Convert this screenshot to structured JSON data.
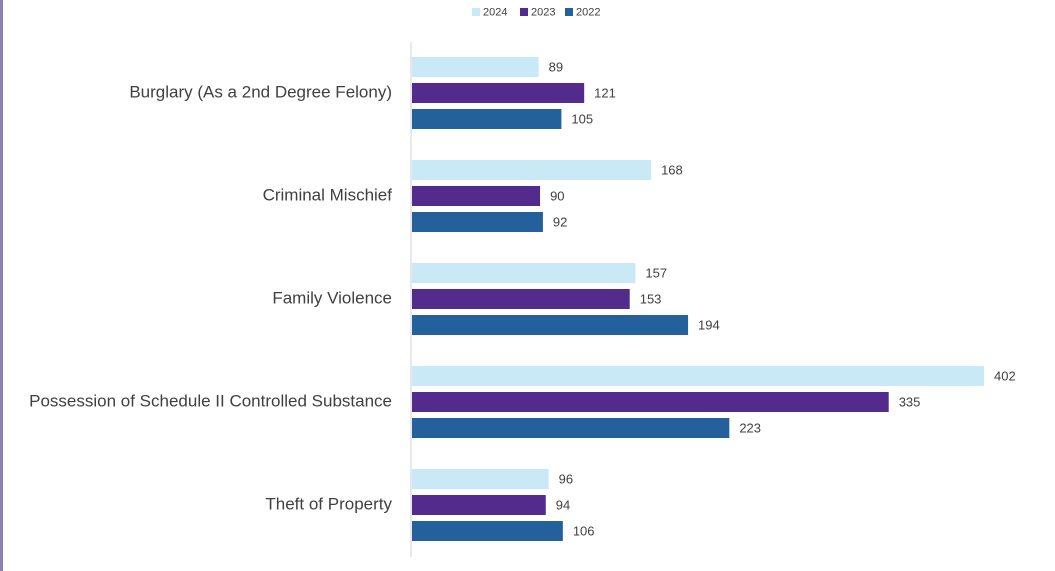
{
  "chart_data": {
    "type": "bar",
    "orientation": "horizontal",
    "categories": [
      "Burglary (As a 2nd Degree Felony)",
      "Criminal Mischief",
      "Family Violence",
      "Possession of Schedule II Controlled Substance",
      "Theft of Property"
    ],
    "series": [
      {
        "name": "2024",
        "color": "#c9e9f6",
        "values": [
          89,
          168,
          157,
          402,
          96
        ]
      },
      {
        "name": "2023",
        "color": "#532b8c",
        "values": [
          121,
          90,
          153,
          335,
          94
        ]
      },
      {
        "name": "2022",
        "color": "#23609c",
        "values": [
          105,
          92,
          194,
          223,
          106
        ]
      }
    ],
    "legend": "top"
  }
}
